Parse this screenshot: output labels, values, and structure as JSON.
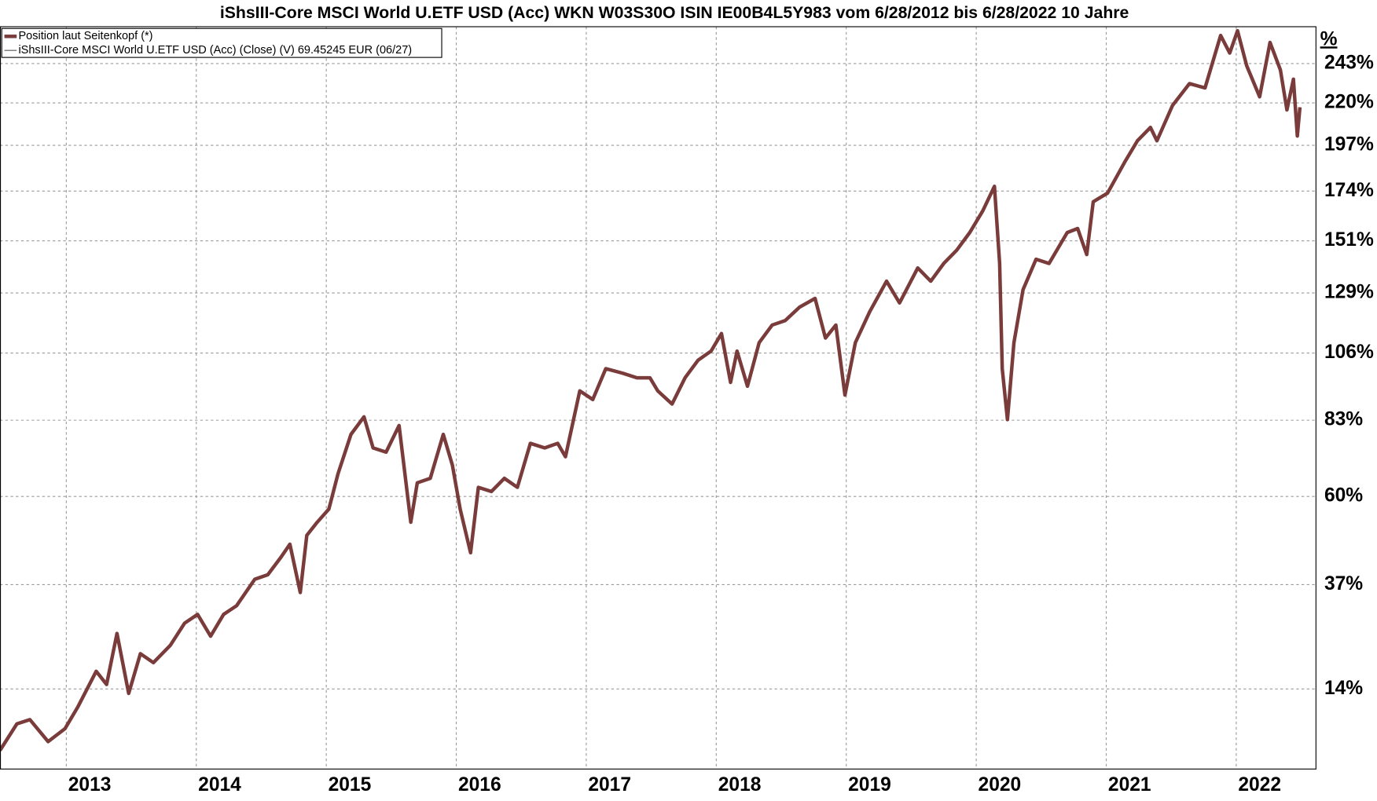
{
  "chart_data": {
    "type": "line",
    "title": "iShsIII-Core MSCI World U.ETF USD (Acc) WKN W03S30O ISIN IE00B4L5Y983 vom 6/28/2012 bis 6/28/2022 10 Jahre",
    "y_unit_label": "%",
    "legend_note": "iShsIII-Core MSCI World U.ETF USD (Acc) (Close) (V) 69.45245 EUR (06/27)",
    "log_scale": true,
    "grid": true,
    "legend": "upper left",
    "xlim": [
      2012.49,
      2022.61
    ],
    "xticks": [
      2013,
      2014,
      2015,
      2016,
      2017,
      2018,
      2019,
      2020,
      2021,
      2022
    ],
    "ylim": [
      -1,
      266
    ],
    "yticks": [
      {
        "value": 14,
        "label": "14%"
      },
      {
        "value": 37,
        "label": "37%"
      },
      {
        "value": 60,
        "label": "60%"
      },
      {
        "value": 83,
        "label": "83%"
      },
      {
        "value": 106,
        "label": "106%"
      },
      {
        "value": 129,
        "label": "129%"
      },
      {
        "value": 151,
        "label": "151%"
      },
      {
        "value": 174,
        "label": "174%"
      },
      {
        "value": 197,
        "label": "197%"
      },
      {
        "value": 220,
        "label": "220%"
      },
      {
        "value": 243,
        "label": "243%"
      }
    ],
    "x": [
      2012.49,
      2012.62,
      2012.72,
      2012.86,
      2012.99,
      2013.09,
      2013.23,
      2013.31,
      2013.39,
      2013.48,
      2013.57,
      2013.67,
      2013.8,
      2013.91,
      2014.01,
      2014.11,
      2014.21,
      2014.31,
      2014.45,
      2014.55,
      2014.65,
      2014.72,
      2014.8,
      2014.85,
      2014.93,
      2015.02,
      2015.09,
      2015.19,
      2015.29,
      2015.36,
      2015.46,
      2015.56,
      2015.65,
      2015.7,
      2015.8,
      2015.9,
      2015.97,
      2016.03,
      2016.11,
      2016.17,
      2016.27,
      2016.37,
      2016.47,
      2016.57,
      2016.68,
      2016.78,
      2016.84,
      2016.95,
      2017.05,
      2017.15,
      2017.28,
      2017.39,
      2017.49,
      2017.55,
      2017.66,
      2017.76,
      2017.86,
      2017.96,
      2018.04,
      2018.11,
      2018.16,
      2018.24,
      2018.33,
      2018.43,
      2018.53,
      2018.64,
      2018.76,
      2018.84,
      2018.92,
      2018.99,
      2019.07,
      2019.18,
      2019.31,
      2019.41,
      2019.55,
      2019.65,
      2019.75,
      2019.85,
      2019.95,
      2020.05,
      2020.14,
      2020.18,
      2020.2,
      2020.24,
      2020.29,
      2020.36,
      2020.46,
      2020.56,
      2020.7,
      2020.78,
      2020.85,
      2020.9,
      2021.01,
      2021.14,
      2021.24,
      2021.34,
      2021.39,
      2021.51,
      2021.64,
      2021.76,
      2021.88,
      2021.95,
      2022.01,
      2022.08,
      2022.18,
      2022.26,
      2022.34,
      2022.39,
      2022.44,
      2022.47,
      2022.49
    ],
    "series": [
      {
        "name": "Position laut Seitenkopf (*)",
        "color": "#7a3b3b",
        "values": [
          2.3,
          7.2,
          8.0,
          3.9,
          6.3,
          10.5,
          17.6,
          14.9,
          25.7,
          13.1,
          21.3,
          19.4,
          23.1,
          28.0,
          30.0,
          25.1,
          30.0,
          32.0,
          38.3,
          39.4,
          43.7,
          47.1,
          35.1,
          49.4,
          52.9,
          56.5,
          66.5,
          78.5,
          84.1,
          74.3,
          73.0,
          81.3,
          52.9,
          63.9,
          65.2,
          78.5,
          69.1,
          56.5,
          44.9,
          62.6,
          61.4,
          65.2,
          62.6,
          75.7,
          74.3,
          75.7,
          71.6,
          92.7,
          89.8,
          100.4,
          98.8,
          97.2,
          97.2,
          92.7,
          88.3,
          97.2,
          103.4,
          106.7,
          113.2,
          95.6,
          106.7,
          94.3,
          109.8,
          116.4,
          118.1,
          123.3,
          126.8,
          111.5,
          116.4,
          91.3,
          109.8,
          121.5,
          133.8,
          125.0,
          139.3,
          133.8,
          141.2,
          146.9,
          154.7,
          164.6,
          176.3,
          141.2,
          100.4,
          83.2,
          109.8,
          130.3,
          143.0,
          141.2,
          154.7,
          156.5,
          145.0,
          168.9,
          173.0,
          188.1,
          199.4,
          206.5,
          199.4,
          218.6,
          231.1,
          228.6,
          260.4,
          249.4,
          263.4,
          241.8,
          223.5,
          256.0,
          239.1,
          216.1,
          233.7,
          201.9,
          217.6
        ]
      }
    ]
  }
}
